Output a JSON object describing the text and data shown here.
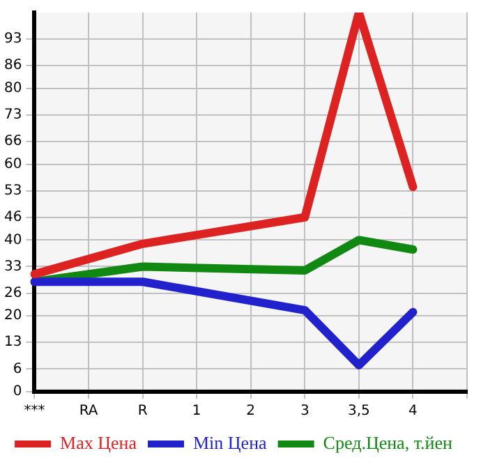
{
  "chart_data": {
    "type": "line",
    "categories": [
      "***",
      "RA",
      "R",
      "1",
      "2",
      "3",
      "3,5",
      "4",
      null
    ],
    "series": [
      {
        "name": "Max Цена",
        "color": "#dd2222",
        "values": [
          31,
          null,
          39,
          null,
          null,
          46,
          100,
          54,
          null
        ]
      },
      {
        "name": "Min Цена",
        "color": "#2222cc",
        "values": [
          29,
          null,
          29,
          null,
          null,
          21.5,
          7,
          21,
          null
        ]
      },
      {
        "name": "Сред.Цена, т.йен",
        "color": "#118811",
        "values": [
          29,
          null,
          33,
          null,
          null,
          32,
          40,
          37.5,
          null
        ]
      }
    ],
    "ylim": [
      0,
      100
    ],
    "yticks": [
      0,
      6,
      13,
      20,
      26,
      33,
      40,
      46,
      53,
      60,
      66,
      73,
      80,
      86,
      93
    ],
    "grid": true,
    "legend": "bottom",
    "marker": "none",
    "line_style": "solid"
  }
}
